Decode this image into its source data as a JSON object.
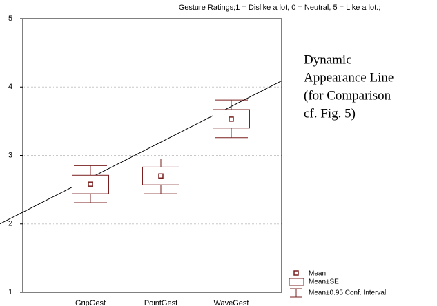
{
  "chart_data": {
    "type": "box",
    "title": "Gesture Ratings;1 = Dislike a lot, 0 = Neutral, 5 = Like a lot.;",
    "categories": [
      "GripGest",
      "PointGest",
      "WaveGest"
    ],
    "means": [
      2.58,
      2.7,
      3.53
    ],
    "se_low": [
      2.44,
      2.57,
      3.4
    ],
    "se_high": [
      2.71,
      2.83,
      3.67
    ],
    "ci_low": [
      2.31,
      2.44,
      3.26
    ],
    "ci_high": [
      2.85,
      2.95,
      3.81
    ],
    "color": "#7a1f1f",
    "ylim": [
      1,
      5
    ],
    "yticks": [
      1,
      2,
      3,
      4,
      5
    ],
    "grid": true,
    "legend": [
      "Mean",
      "Mean±SE",
      "Mean±0.95 Conf. Interval"
    ],
    "legend_position": "lower right",
    "reference_line": {
      "label_lines": [
        "Dynamic",
        "Appearance Line",
        "(for Comparison",
        "cf. Fig. 5)"
      ],
      "y_start": 2.17,
      "y_end": 4.09
    }
  }
}
